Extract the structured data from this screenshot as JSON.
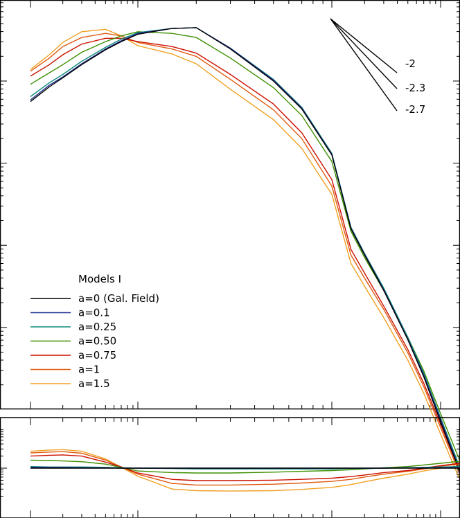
{
  "chart_data": [
    {
      "type": "line",
      "panel": "main",
      "title": "",
      "xlabel": "",
      "ylabel": "",
      "x_scale": "log",
      "y_scale": "log",
      "x": [
        1,
        1.5,
        2,
        3,
        5,
        7,
        10,
        15,
        20,
        30,
        50,
        70,
        100,
        150,
        200,
        300,
        500,
        700,
        1000,
        1500
      ],
      "legend": {
        "title": "Models I",
        "placement": "lower-left",
        "entries": [
          "a=0 (Gal. Field)",
          "a=0.1",
          "a=0.25",
          "a=0.50",
          "a=0.75",
          "a=1",
          "a=1.5"
        ]
      },
      "series": [
        {
          "name": "a=0 (Gal. Field)",
          "color": "#000000",
          "values": [
            -0.25,
            -0.07,
            0.04,
            0.2,
            0.38,
            0.48,
            0.57,
            0.64,
            0.65,
            0.39,
            0.0,
            -0.34,
            -0.9,
            -1.8,
            -2.12,
            -2.55,
            -3.15,
            -3.6,
            -4.15,
            -4.75
          ]
        },
        {
          "name": "a=0.1",
          "color": "#1f2f8f",
          "values": [
            -0.23,
            -0.05,
            0.05,
            0.21,
            0.39,
            0.49,
            0.58,
            0.64,
            0.65,
            0.4,
            0.01,
            -0.33,
            -0.89,
            -1.79,
            -2.11,
            -2.54,
            -3.14,
            -3.58,
            -4.12,
            -4.73
          ]
        },
        {
          "name": "a=0.25",
          "color": "#0f8a7a",
          "values": [
            -0.19,
            -0.02,
            0.08,
            0.24,
            0.41,
            0.51,
            0.59,
            0.64,
            0.65,
            0.4,
            0.02,
            -0.32,
            -0.88,
            -1.78,
            -2.1,
            -2.52,
            -3.12,
            -3.56,
            -4.1,
            -4.7
          ]
        },
        {
          "name": "a=0.50",
          "color": "#3d8f00",
          "values": [
            -0.04,
            0.1,
            0.2,
            0.35,
            0.48,
            0.55,
            0.6,
            0.58,
            0.53,
            0.28,
            -0.08,
            -0.42,
            -0.98,
            -1.83,
            -2.15,
            -2.55,
            -3.12,
            -3.53,
            -4.05,
            -4.62
          ]
        },
        {
          "name": "a=0.75",
          "color": "#cc1100",
          "values": [
            0.06,
            0.2,
            0.32,
            0.45,
            0.52,
            0.52,
            0.48,
            0.42,
            0.34,
            0.08,
            -0.28,
            -0.63,
            -1.2,
            -2.05,
            -2.34,
            -2.74,
            -3.27,
            -3.68,
            -4.18,
            -4.75
          ]
        },
        {
          "name": "a=1",
          "color": "#e05a10",
          "values": [
            0.12,
            0.28,
            0.42,
            0.53,
            0.58,
            0.55,
            0.47,
            0.39,
            0.3,
            0.02,
            -0.35,
            -0.7,
            -1.28,
            -2.12,
            -2.4,
            -2.78,
            -3.31,
            -3.72,
            -4.22,
            -4.78
          ]
        },
        {
          "name": "a=1.5",
          "color": "#f0a020",
          "values": [
            0.14,
            0.32,
            0.47,
            0.6,
            0.63,
            0.55,
            0.43,
            0.33,
            0.21,
            -0.1,
            -0.47,
            -0.82,
            -1.38,
            -2.22,
            -2.5,
            -2.88,
            -3.4,
            -3.8,
            -4.3,
            -4.85
          ]
        }
      ],
      "slope_indicator": {
        "labels": [
          "-2",
          "-2.3",
          "-2.7"
        ],
        "slopes": [
          -2,
          -2.3,
          -2.7
        ]
      },
      "grid": false
    },
    {
      "type": "line",
      "panel": "ratio",
      "title": "",
      "xlabel": "",
      "ylabel": "",
      "x_scale": "log",
      "y_scale": "log",
      "x": [
        1,
        1.5,
        2,
        3,
        5,
        7,
        10,
        15,
        20,
        30,
        50,
        70,
        100,
        150,
        200,
        300,
        500,
        700,
        1000,
        1500
      ],
      "series": [
        {
          "name": "a=0 (Gal. Field)",
          "color": "#000000",
          "values": [
            0.0,
            0.0,
            0.0,
            0.0,
            0.0,
            0.0,
            0.0,
            0.0,
            0.0,
            0.0,
            0.0,
            0.0,
            0.0,
            0.0,
            0.0,
            0.0,
            0.0,
            0.0,
            0.0,
            0.0
          ]
        },
        {
          "name": "a=0.1",
          "color": "#1f2f8f",
          "values": [
            0.02,
            0.02,
            0.02,
            0.01,
            0.01,
            0.0,
            0.0,
            0.0,
            0.0,
            0.0,
            0.0,
            0.0,
            0.0,
            0.0,
            0.0,
            0.0,
            0.01,
            0.01,
            0.01,
            0.02
          ]
        },
        {
          "name": "a=0.25",
          "color": "#0f8a7a",
          "values": [
            0.04,
            0.03,
            0.03,
            0.03,
            0.02,
            0.01,
            0.0,
            -0.01,
            -0.02,
            -0.02,
            -0.02,
            -0.02,
            -0.02,
            -0.01,
            -0.01,
            0.0,
            0.01,
            0.02,
            0.03,
            0.04
          ]
        },
        {
          "name": "a=0.50",
          "color": "#3d8f00",
          "values": [
            0.2,
            0.19,
            0.18,
            0.16,
            0.1,
            0.02,
            -0.07,
            -0.11,
            -0.12,
            -0.12,
            -0.1,
            -0.08,
            -0.06,
            -0.04,
            -0.02,
            0.01,
            0.04,
            0.08,
            0.12,
            0.17
          ]
        },
        {
          "name": "a=0.75",
          "color": "#cc1100",
          "values": [
            0.3,
            0.32,
            0.33,
            0.3,
            0.15,
            0.03,
            -0.12,
            -0.28,
            -0.31,
            -0.31,
            -0.3,
            -0.28,
            -0.25,
            -0.21,
            -0.17,
            -0.11,
            -0.06,
            0.0,
            0.06,
            0.12
          ]
        },
        {
          "name": "a=1",
          "color": "#e05a10",
          "values": [
            0.38,
            0.4,
            0.41,
            0.37,
            0.2,
            0.03,
            -0.15,
            -0.38,
            -0.42,
            -0.42,
            -0.4,
            -0.37,
            -0.33,
            -0.28,
            -0.22,
            -0.15,
            -0.08,
            -0.02,
            0.05,
            0.1
          ]
        },
        {
          "name": "a=1.5",
          "color": "#f0a020",
          "values": [
            0.42,
            0.45,
            0.46,
            0.42,
            0.23,
            0.02,
            -0.2,
            -0.52,
            -0.56,
            -0.57,
            -0.56,
            -0.53,
            -0.48,
            -0.41,
            -0.34,
            -0.25,
            -0.15,
            -0.07,
            0.0,
            0.05
          ]
        }
      ],
      "grid": false
    }
  ]
}
